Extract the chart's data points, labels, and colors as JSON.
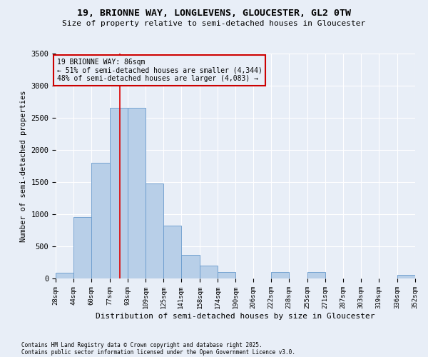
{
  "title": "19, BRIONNE WAY, LONGLEVENS, GLOUCESTER, GL2 0TW",
  "subtitle": "Size of property relative to semi-detached houses in Gloucester",
  "xlabel": "Distribution of semi-detached houses by size in Gloucester",
  "ylabel": "Number of semi-detached properties",
  "footnote1": "Contains HM Land Registry data © Crown copyright and database right 2025.",
  "footnote2": "Contains public sector information licensed under the Open Government Licence v3.0.",
  "annotation_title": "19 BRIONNE WAY: 86sqm",
  "annotation_line1": "← 51% of semi-detached houses are smaller (4,344)",
  "annotation_line2": "48% of semi-detached houses are larger (4,083) →",
  "property_size": 86,
  "bin_edges": [
    28,
    44,
    60,
    77,
    93,
    109,
    125,
    141,
    158,
    174,
    190,
    206,
    222,
    238,
    255,
    271,
    287,
    303,
    319,
    336,
    352
  ],
  "bar_heights": [
    90,
    960,
    1800,
    2650,
    2650,
    1480,
    820,
    370,
    195,
    100,
    0,
    0,
    100,
    0,
    100,
    0,
    0,
    0,
    0,
    55
  ],
  "bar_color": "#b8cfe8",
  "bar_edge_color": "#6699cc",
  "red_line_color": "#dd0000",
  "annotation_box_color": "#cc0000",
  "background_color": "#e8eef7",
  "grid_color": "#ffffff",
  "ylim": [
    0,
    3500
  ],
  "yticks": [
    0,
    500,
    1000,
    1500,
    2000,
    2500,
    3000,
    3500
  ]
}
